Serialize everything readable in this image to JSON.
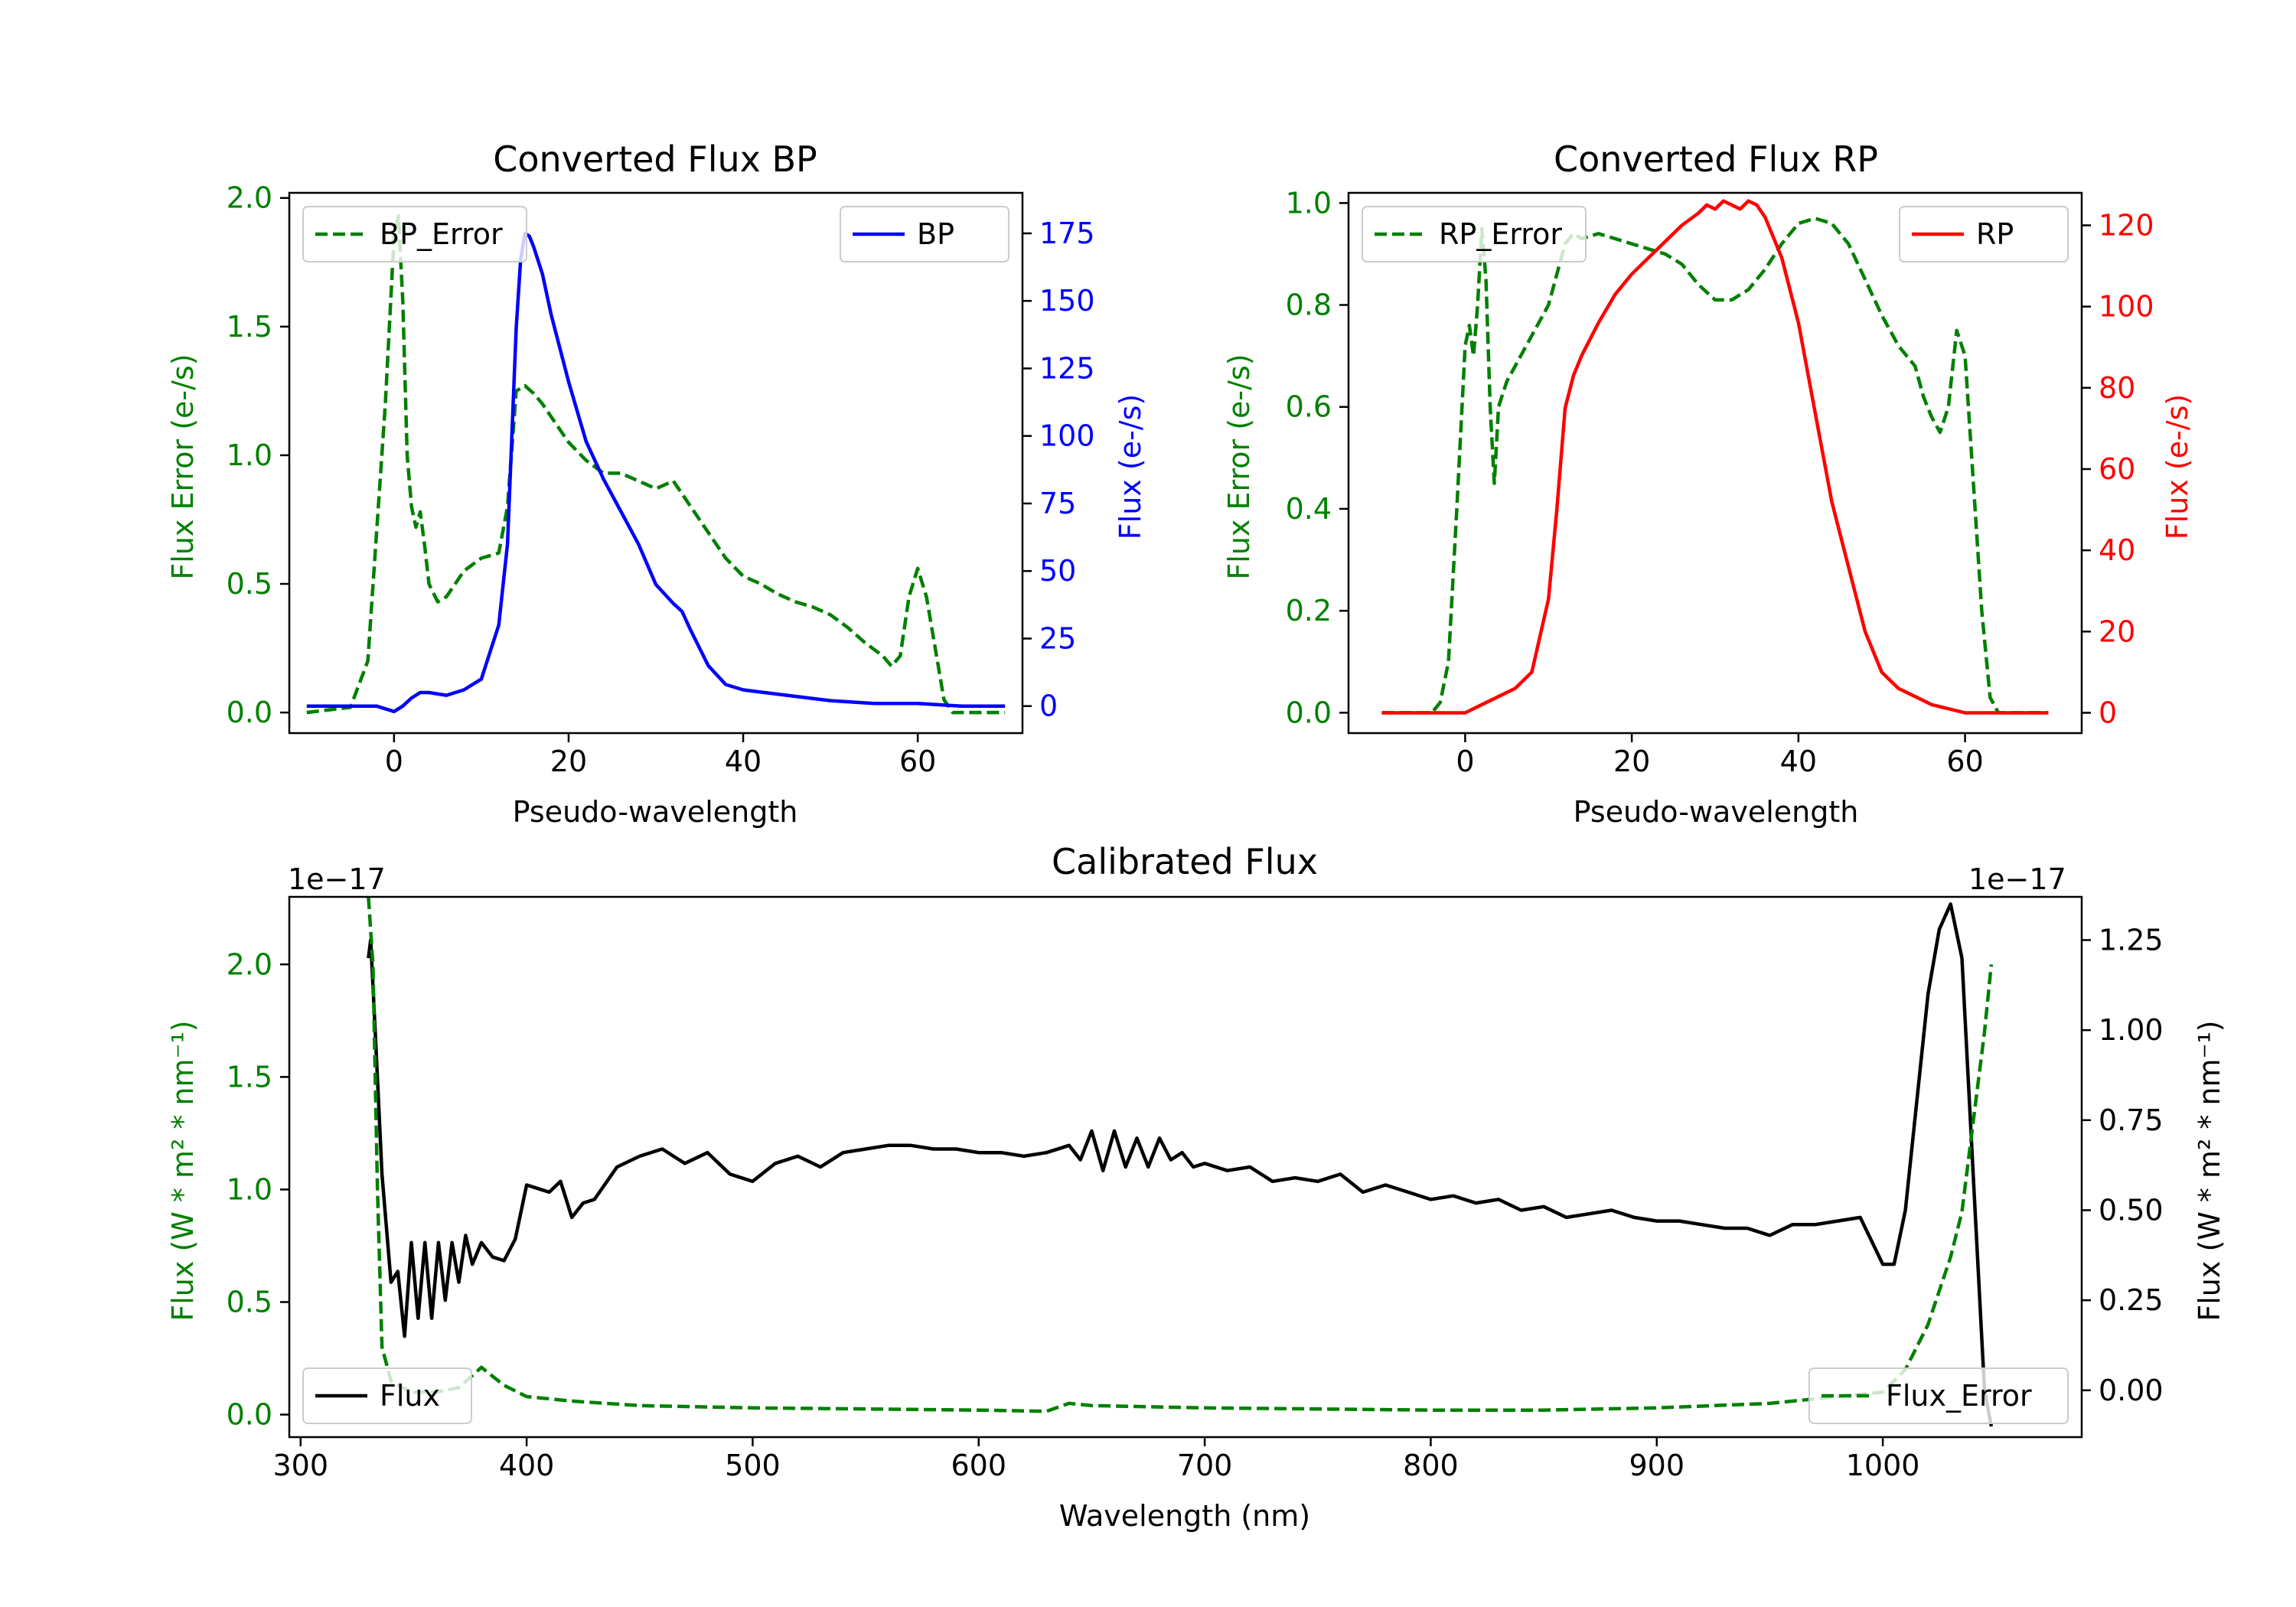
{
  "colors": {
    "bp": "#0000ff",
    "rp": "#ff0000",
    "error": "#008000",
    "flux": "#000000",
    "axis": "#000000",
    "legend_border": "#cccccc"
  },
  "chart_data": [
    {
      "id": "bp",
      "type": "line",
      "title": "Converted Flux BP",
      "xlabel": "Pseudo-wavelength",
      "ylabel_left": "Flux Error (e-/s)",
      "ylabel_right": "Flux (e-/s)",
      "xlim": [
        -12,
        72
      ],
      "ylim_left": [
        -0.08,
        2.02
      ],
      "ylim_right": [
        -10,
        190
      ],
      "xticks": [
        0,
        20,
        40,
        60
      ],
      "xtick_labels": [
        "0",
        "20",
        "40",
        "60"
      ],
      "yticks_left": [
        0.0,
        0.5,
        1.0,
        1.5,
        2.0
      ],
      "ytick_labels_left": [
        "0.0",
        "0.5",
        "1.0",
        "1.5",
        "2.0"
      ],
      "yticks_right": [
        0,
        25,
        50,
        75,
        100,
        125,
        150,
        175
      ],
      "ytick_labels_right": [
        "0",
        "25",
        "50",
        "75",
        "100",
        "125",
        "150",
        "175"
      ],
      "legend_left": "BP_Error",
      "legend_right": "BP",
      "series": [
        {
          "name": "BP_Error",
          "axis": "left",
          "style": "dashed",
          "color_key": "error",
          "x": [
            -10,
            -5,
            -3,
            -1,
            0,
            0.5,
            1,
            1.5,
            2,
            2.5,
            3,
            3.5,
            4,
            5,
            6,
            8,
            10,
            12,
            13,
            14,
            15,
            16,
            17,
            18,
            20,
            22,
            24,
            26,
            28,
            30,
            32,
            34,
            36,
            38,
            40,
            42,
            44,
            46,
            48,
            50,
            52,
            54,
            56,
            57,
            58,
            59,
            60,
            61,
            62,
            63,
            64,
            66,
            70
          ],
          "y": [
            0.0,
            0.02,
            0.2,
            1.2,
            1.85,
            1.93,
            1.6,
            1.0,
            0.8,
            0.72,
            0.78,
            0.65,
            0.5,
            0.43,
            0.45,
            0.55,
            0.6,
            0.62,
            0.8,
            1.25,
            1.27,
            1.24,
            1.2,
            1.15,
            1.05,
            0.98,
            0.93,
            0.93,
            0.9,
            0.87,
            0.9,
            0.8,
            0.7,
            0.6,
            0.53,
            0.5,
            0.46,
            0.43,
            0.41,
            0.38,
            0.33,
            0.27,
            0.22,
            0.18,
            0.22,
            0.45,
            0.56,
            0.45,
            0.25,
            0.05,
            0.0,
            0.0,
            0.0
          ]
        },
        {
          "name": "BP",
          "axis": "right",
          "style": "solid",
          "color_key": "bp",
          "x": [
            -10,
            -5,
            -2,
            0,
            1,
            2,
            3,
            4,
            6,
            8,
            10,
            11,
            12,
            13,
            13.5,
            14,
            14.5,
            15,
            15.5,
            16,
            17,
            18,
            20,
            22,
            24,
            26,
            28,
            30,
            32,
            33,
            34,
            36,
            38,
            40,
            45,
            50,
            55,
            60,
            65,
            70
          ],
          "y": [
            0,
            0,
            0,
            -2,
            0,
            3,
            5,
            5,
            4,
            6,
            10,
            20,
            30,
            60,
            100,
            140,
            165,
            175,
            174,
            170,
            160,
            145,
            120,
            98,
            84,
            72,
            60,
            45,
            38,
            35,
            28,
            15,
            8,
            6,
            4,
            2,
            1,
            1,
            0,
            0
          ]
        }
      ]
    },
    {
      "id": "rp",
      "type": "line",
      "title": "Converted Flux RP",
      "xlabel": "Pseudo-wavelength",
      "ylabel_left": "Flux Error (e-/s)",
      "ylabel_right": "Flux (e-/s)",
      "xlim": [
        -14,
        74
      ],
      "ylim_left": [
        -0.04,
        1.02
      ],
      "ylim_right": [
        -5,
        128
      ],
      "xticks": [
        0,
        20,
        40,
        60
      ],
      "xtick_labels": [
        "0",
        "20",
        "40",
        "60"
      ],
      "yticks_left": [
        0.0,
        0.2,
        0.4,
        0.6,
        0.8,
        1.0
      ],
      "ytick_labels_left": [
        "0.0",
        "0.2",
        "0.4",
        "0.6",
        "0.8",
        "1.0"
      ],
      "yticks_right": [
        0,
        20,
        40,
        60,
        80,
        100,
        120
      ],
      "ytick_labels_right": [
        "0",
        "20",
        "40",
        "60",
        "80",
        "100",
        "120"
      ],
      "legend_left": "RP_Error",
      "legend_right": "RP",
      "series": [
        {
          "name": "RP_Error",
          "axis": "left",
          "style": "dashed",
          "color_key": "error",
          "x": [
            -10,
            -4,
            -3,
            -2,
            -1,
            0,
            0.5,
            1,
            1.5,
            2,
            2.5,
            3,
            3.5,
            4,
            5,
            6,
            8,
            10,
            12,
            13,
            14,
            16,
            18,
            20,
            22,
            24,
            26,
            28,
            30,
            32,
            34,
            36,
            38,
            40,
            42,
            44,
            46,
            48,
            50,
            52,
            54,
            55,
            56,
            57,
            58,
            59,
            60,
            61,
            62,
            63,
            64,
            66,
            70
          ],
          "y": [
            0.0,
            0.0,
            0.02,
            0.1,
            0.4,
            0.72,
            0.76,
            0.7,
            0.8,
            0.95,
            0.85,
            0.6,
            0.45,
            0.6,
            0.65,
            0.68,
            0.74,
            0.8,
            0.92,
            0.94,
            0.93,
            0.94,
            0.93,
            0.92,
            0.91,
            0.9,
            0.88,
            0.84,
            0.81,
            0.81,
            0.83,
            0.87,
            0.92,
            0.96,
            0.97,
            0.96,
            0.92,
            0.85,
            0.78,
            0.72,
            0.68,
            0.62,
            0.58,
            0.55,
            0.6,
            0.75,
            0.7,
            0.45,
            0.2,
            0.03,
            0.0,
            0.0,
            0.0
          ]
        },
        {
          "name": "RP",
          "axis": "right",
          "style": "solid",
          "color_key": "rp",
          "x": [
            -10,
            -5,
            0,
            2,
            4,
            6,
            8,
            10,
            11,
            12,
            13,
            14,
            16,
            18,
            20,
            22,
            24,
            26,
            28,
            29,
            30,
            31,
            32,
            33,
            34,
            35,
            36,
            38,
            40,
            42,
            44,
            46,
            48,
            50,
            52,
            54,
            56,
            58,
            60,
            62,
            64,
            66,
            70
          ],
          "y": [
            0,
            0,
            0,
            2,
            4,
            6,
            10,
            28,
            50,
            75,
            83,
            88,
            96,
            103,
            108,
            112,
            116,
            120,
            123,
            125,
            124,
            126,
            125,
            124,
            126,
            125,
            122,
            112,
            96,
            74,
            52,
            36,
            20,
            10,
            6,
            4,
            2,
            1,
            0,
            0,
            0,
            0,
            0
          ]
        }
      ]
    },
    {
      "id": "cal",
      "type": "line",
      "title": "Calibrated Flux",
      "xlabel": "Wavelength (nm)",
      "ylabel_left": "Flux (W * m² * nm⁻¹)",
      "ylabel_right": "Flux (W * m² * nm⁻¹)",
      "offset_left": "1e−17",
      "offset_right": "1e−17",
      "xlim": [
        295,
        1088
      ],
      "ylim_left": [
        -0.1,
        2.3
      ],
      "ylim_right": [
        -0.13,
        1.37
      ],
      "xticks": [
        300,
        400,
        500,
        600,
        700,
        800,
        900,
        1000
      ],
      "xtick_labels": [
        "300",
        "400",
        "500",
        "600",
        "700",
        "800",
        "900",
        "1000"
      ],
      "yticks_left": [
        0.0,
        0.5,
        1.0,
        1.5,
        2.0
      ],
      "ytick_labels_left": [
        "0.0",
        "0.5",
        "1.0",
        "1.5",
        "2.0"
      ],
      "yticks_right": [
        0.0,
        0.25,
        0.5,
        0.75,
        1.0,
        1.25
      ],
      "ytick_labels_right": [
        "0.00",
        "0.25",
        "0.50",
        "0.75",
        "1.00",
        "1.25"
      ],
      "legend_left": "Flux",
      "legend_right": "Flux_Error",
      "series": [
        {
          "name": "Flux",
          "axis": "right",
          "style": "solid",
          "color_key": "flux",
          "x": [
            330,
            331,
            333,
            336,
            340,
            343,
            346,
            349,
            352,
            355,
            358,
            361,
            364,
            367,
            370,
            373,
            376,
            380,
            385,
            390,
            395,
            400,
            405,
            410,
            415,
            420,
            425,
            430,
            440,
            450,
            460,
            470,
            480,
            490,
            500,
            510,
            520,
            530,
            540,
            550,
            560,
            570,
            580,
            590,
            600,
            610,
            620,
            630,
            640,
            645,
            650,
            655,
            660,
            665,
            670,
            675,
            680,
            685,
            690,
            695,
            700,
            710,
            720,
            730,
            740,
            750,
            760,
            770,
            780,
            790,
            800,
            810,
            820,
            830,
            840,
            850,
            860,
            870,
            880,
            890,
            900,
            910,
            920,
            930,
            940,
            950,
            960,
            970,
            980,
            990,
            1000,
            1005,
            1010,
            1015,
            1020,
            1025,
            1030,
            1035,
            1040,
            1045,
            1048
          ],
          "y": [
            1.2,
            1.25,
            1.0,
            0.6,
            0.3,
            0.33,
            0.15,
            0.41,
            0.2,
            0.41,
            0.2,
            0.41,
            0.25,
            0.41,
            0.3,
            0.43,
            0.35,
            0.41,
            0.37,
            0.36,
            0.42,
            0.57,
            0.56,
            0.55,
            0.58,
            0.48,
            0.52,
            0.53,
            0.62,
            0.65,
            0.67,
            0.63,
            0.66,
            0.6,
            0.58,
            0.63,
            0.65,
            0.62,
            0.66,
            0.67,
            0.68,
            0.68,
            0.67,
            0.67,
            0.66,
            0.66,
            0.65,
            0.66,
            0.68,
            0.64,
            0.72,
            0.61,
            0.72,
            0.62,
            0.7,
            0.62,
            0.7,
            0.64,
            0.66,
            0.62,
            0.63,
            0.61,
            0.62,
            0.58,
            0.59,
            0.58,
            0.6,
            0.55,
            0.57,
            0.55,
            0.53,
            0.54,
            0.52,
            0.53,
            0.5,
            0.51,
            0.48,
            0.49,
            0.5,
            0.48,
            0.47,
            0.47,
            0.46,
            0.45,
            0.45,
            0.43,
            0.46,
            0.46,
            0.47,
            0.48,
            0.35,
            0.35,
            0.5,
            0.8,
            1.1,
            1.28,
            1.35,
            1.2,
            0.6,
            0.0,
            -0.1
          ]
        },
        {
          "name": "Flux_Error",
          "axis": "left",
          "style": "dashed",
          "color_key": "error",
          "x": [
            330,
            332,
            334,
            336,
            340,
            345,
            350,
            360,
            370,
            380,
            385,
            390,
            400,
            420,
            450,
            500,
            550,
            600,
            630,
            640,
            650,
            700,
            750,
            800,
            850,
            900,
            950,
            1000,
            1010,
            1020,
            1025,
            1030,
            1035,
            1040,
            1045,
            1048
          ],
          "y": [
            2.3,
            2.0,
            1.0,
            0.3,
            0.15,
            0.12,
            0.1,
            0.1,
            0.12,
            0.21,
            0.17,
            0.13,
            0.08,
            0.06,
            0.04,
            0.03,
            0.025,
            0.02,
            0.015,
            0.05,
            0.04,
            0.03,
            0.025,
            0.02,
            0.02,
            0.03,
            0.05,
            0.1,
            0.2,
            0.4,
            0.55,
            0.7,
            0.9,
            1.3,
            1.7,
            2.0
          ]
        }
      ]
    }
  ]
}
